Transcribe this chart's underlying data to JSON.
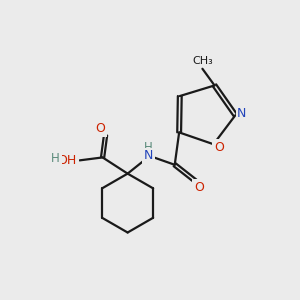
{
  "bg_color": "#ebebeb",
  "bond_color": "#1a1a1a",
  "N_color": "#2244bb",
  "O_color": "#cc2200",
  "H_color": "#5a8a7a",
  "linewidth": 1.6,
  "figsize": [
    3.0,
    3.0
  ],
  "dpi": 100,
  "xlim": [
    0,
    10
  ],
  "ylim": [
    0,
    10
  ]
}
